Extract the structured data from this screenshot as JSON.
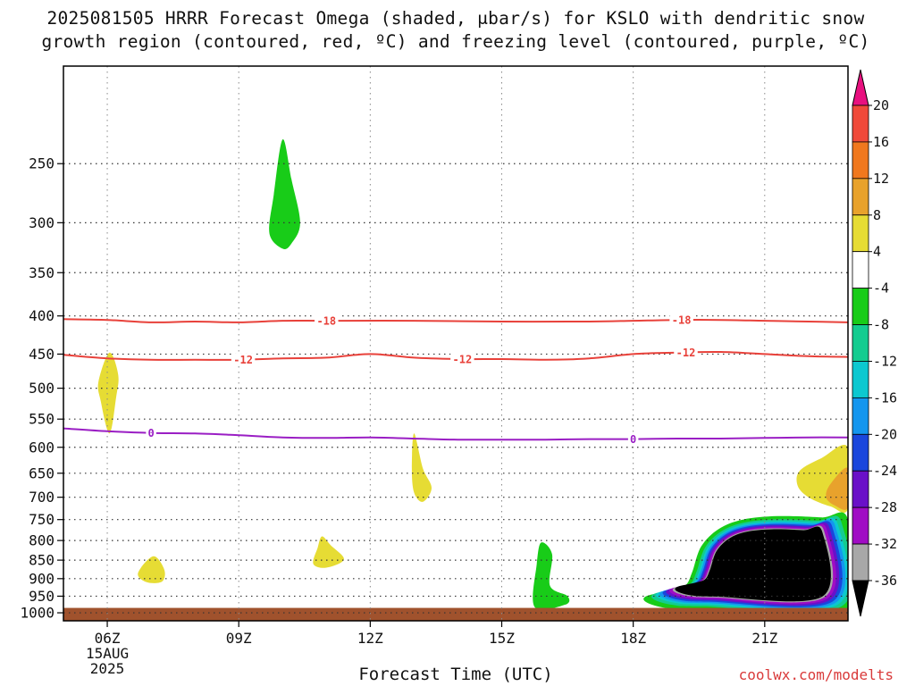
{
  "title": {
    "line1": "2025081505 HRRR Forecast Omega (shaded, μbar/s) for KSLO with dendritic snow",
    "line2": "growth region (contoured, red, ºC) and freezing level (contoured, purple, ºC)"
  },
  "xlabel": "Forecast Time (UTC)",
  "credit": "coolwx.com/modelts",
  "chart_data": {
    "type": "heatmap",
    "title": "2025081505 HRRR Forecast Omega (shaded, μbar/s) for KSLO with dendritic snow growth region (contoured, red, ºC) and freezing level (contoured, purple, ºC)",
    "xlabel": "Forecast Time (UTC)",
    "ylabel": "",
    "x_range_hours_utc": [
      5,
      22.9
    ],
    "x_ticks": [
      {
        "hour": 6,
        "label": "06Z",
        "sublabels": [
          "15AUG",
          "2025"
        ]
      },
      {
        "hour": 9,
        "label": "09Z"
      },
      {
        "hour": 12,
        "label": "12Z"
      },
      {
        "hour": 15,
        "label": "15Z"
      },
      {
        "hour": 18,
        "label": "18Z"
      },
      {
        "hour": 21,
        "label": "21Z"
      }
    ],
    "y_axis": {
      "units": "hPa",
      "reversed": true,
      "scale": "log-pressure",
      "range": [
        1025,
        185
      ],
      "ticks": [
        250,
        300,
        350,
        400,
        450,
        500,
        550,
        600,
        650,
        700,
        750,
        800,
        850,
        900,
        950,
        1000
      ]
    },
    "grid": true,
    "ground_below_hPa": 985,
    "colorbar": {
      "units": "μbar/s",
      "labels": [
        20,
        16,
        12,
        8,
        4,
        -4,
        -8,
        -12,
        -16,
        -20,
        -24,
        -28,
        -32,
        -36
      ],
      "bins": [
        {
          "range": ">20",
          "color": "#e8107f"
        },
        {
          "range": "16 to 20",
          "color": "#f04a3a"
        },
        {
          "range": "12 to 16",
          "color": "#f0781e"
        },
        {
          "range": "8 to 12",
          "color": "#e8a22c"
        },
        {
          "range": "4 to 8",
          "color": "#e6dc34"
        },
        {
          "range": "-4 to 4",
          "color": "#ffffff"
        },
        {
          "range": "-8 to -4",
          "color": "#18cc18"
        },
        {
          "range": "-12 to -8",
          "color": "#14cc90"
        },
        {
          "range": "-16 to -12",
          "color": "#0cc8d0"
        },
        {
          "range": "-20 to -16",
          "color": "#1496ee"
        },
        {
          "range": "-24 to -20",
          "color": "#1a46dc"
        },
        {
          "range": "-28 to -24",
          "color": "#6a10c8"
        },
        {
          "range": "-32 to -28",
          "color": "#a00cc4"
        },
        {
          "range": "-36 to -32",
          "color": "#a8a8a8"
        },
        {
          "range": "<-36",
          "color": "#000000"
        }
      ]
    },
    "series": [
      {
        "kind": "contour",
        "color": "#e8413a",
        "label": "-18",
        "points": [
          [
            5,
            404
          ],
          [
            6,
            405
          ],
          [
            7,
            408
          ],
          [
            8,
            407
          ],
          [
            9,
            408
          ],
          [
            10,
            406
          ],
          [
            11,
            406
          ],
          [
            13,
            406
          ],
          [
            15,
            407
          ],
          [
            17,
            407
          ],
          [
            18,
            406
          ],
          [
            19,
            405
          ],
          [
            20,
            405
          ],
          [
            21,
            406
          ],
          [
            22,
            407
          ],
          [
            22.9,
            408
          ]
        ],
        "label_hours": [
          11,
          19.1
        ]
      },
      {
        "kind": "contour",
        "color": "#e8413a",
        "label": "-12",
        "points": [
          [
            5,
            451
          ],
          [
            6,
            456
          ],
          [
            7,
            458
          ],
          [
            8,
            458
          ],
          [
            9,
            458
          ],
          [
            10,
            456
          ],
          [
            11,
            455
          ],
          [
            12,
            450
          ],
          [
            13,
            455
          ],
          [
            14,
            457
          ],
          [
            15,
            457
          ],
          [
            16,
            458
          ],
          [
            17,
            456
          ],
          [
            18,
            450
          ],
          [
            19,
            448
          ],
          [
            20,
            447
          ],
          [
            21,
            450
          ],
          [
            22,
            453
          ],
          [
            22.9,
            454
          ]
        ],
        "label_hours": [
          9.1,
          14.1,
          19.2
        ]
      },
      {
        "kind": "contour",
        "color": "#9a1ec4",
        "label": "0",
        "points": [
          [
            5,
            566
          ],
          [
            6,
            571
          ],
          [
            7,
            574
          ],
          [
            8,
            575
          ],
          [
            9,
            578
          ],
          [
            10,
            582
          ],
          [
            11,
            583
          ],
          [
            12,
            582
          ],
          [
            13,
            584
          ],
          [
            14,
            586
          ],
          [
            15,
            586
          ],
          [
            16,
            586
          ],
          [
            17,
            585
          ],
          [
            18,
            585
          ],
          [
            19,
            584
          ],
          [
            20,
            584
          ],
          [
            21,
            583
          ],
          [
            22,
            582
          ],
          [
            22.9,
            582
          ]
        ],
        "label_hours": [
          7,
          18
        ]
      }
    ],
    "shaded_regions": [
      {
        "value_bin": "-8 to -4",
        "color": "#18cc18",
        "polygon": [
          [
            10,
            232
          ],
          [
            10.2,
            262
          ],
          [
            10.4,
            300
          ],
          [
            10.2,
            320
          ],
          [
            10,
            325
          ],
          [
            9.7,
            310
          ],
          [
            9.8,
            275
          ]
        ]
      },
      {
        "value_bin": "4 to 8",
        "color": "#e6dc34",
        "polygon": [
          [
            6.05,
            448
          ],
          [
            6.25,
            480
          ],
          [
            6.2,
            515
          ],
          [
            6.05,
            575
          ],
          [
            5.85,
            520
          ],
          [
            5.8,
            490
          ]
        ]
      },
      {
        "value_bin": "4 to 8",
        "color": "#e6dc34",
        "polygon": [
          [
            13,
            575
          ],
          [
            13.2,
            640
          ],
          [
            13.4,
            680
          ],
          [
            13.2,
            710
          ],
          [
            13.0,
            690
          ],
          [
            12.95,
            640
          ]
        ]
      },
      {
        "value_bin": "4 to 8",
        "color": "#e6dc34",
        "polygon": [
          [
            7.05,
            840
          ],
          [
            7.3,
            875
          ],
          [
            7.25,
            908
          ],
          [
            6.9,
            910
          ],
          [
            6.7,
            885
          ]
        ]
      },
      {
        "value_bin": "4 to 8",
        "color": "#e6dc34",
        "polygon": [
          [
            10.9,
            790
          ],
          [
            11.1,
            812
          ],
          [
            11.4,
            848
          ],
          [
            11.0,
            870
          ],
          [
            10.7,
            860
          ],
          [
            10.8,
            818
          ]
        ]
      },
      {
        "value_bin": "-8 to -4",
        "color": "#18cc18",
        "polygon": [
          [
            15.9,
            805
          ],
          [
            16.15,
            835
          ],
          [
            16.1,
            920
          ],
          [
            16.5,
            950
          ],
          [
            16.45,
            975
          ],
          [
            15.75,
            982
          ],
          [
            15.8,
            860
          ]
        ]
      },
      {
        "value_bin": "4 to 8",
        "color": "#e6dc34",
        "polygon": [
          [
            22.9,
            600
          ],
          [
            22.3,
            620
          ],
          [
            21.8,
            645
          ],
          [
            21.75,
            675
          ],
          [
            22.0,
            700
          ],
          [
            22.5,
            720
          ],
          [
            22.9,
            725
          ]
        ]
      },
      {
        "value_bin": "8 to 12",
        "color": "#e8a22c",
        "polygon": [
          [
            22.9,
            640
          ],
          [
            22.5,
            672
          ],
          [
            22.4,
            700
          ],
          [
            22.6,
            718
          ],
          [
            22.9,
            722
          ]
        ]
      }
    ]
  }
}
